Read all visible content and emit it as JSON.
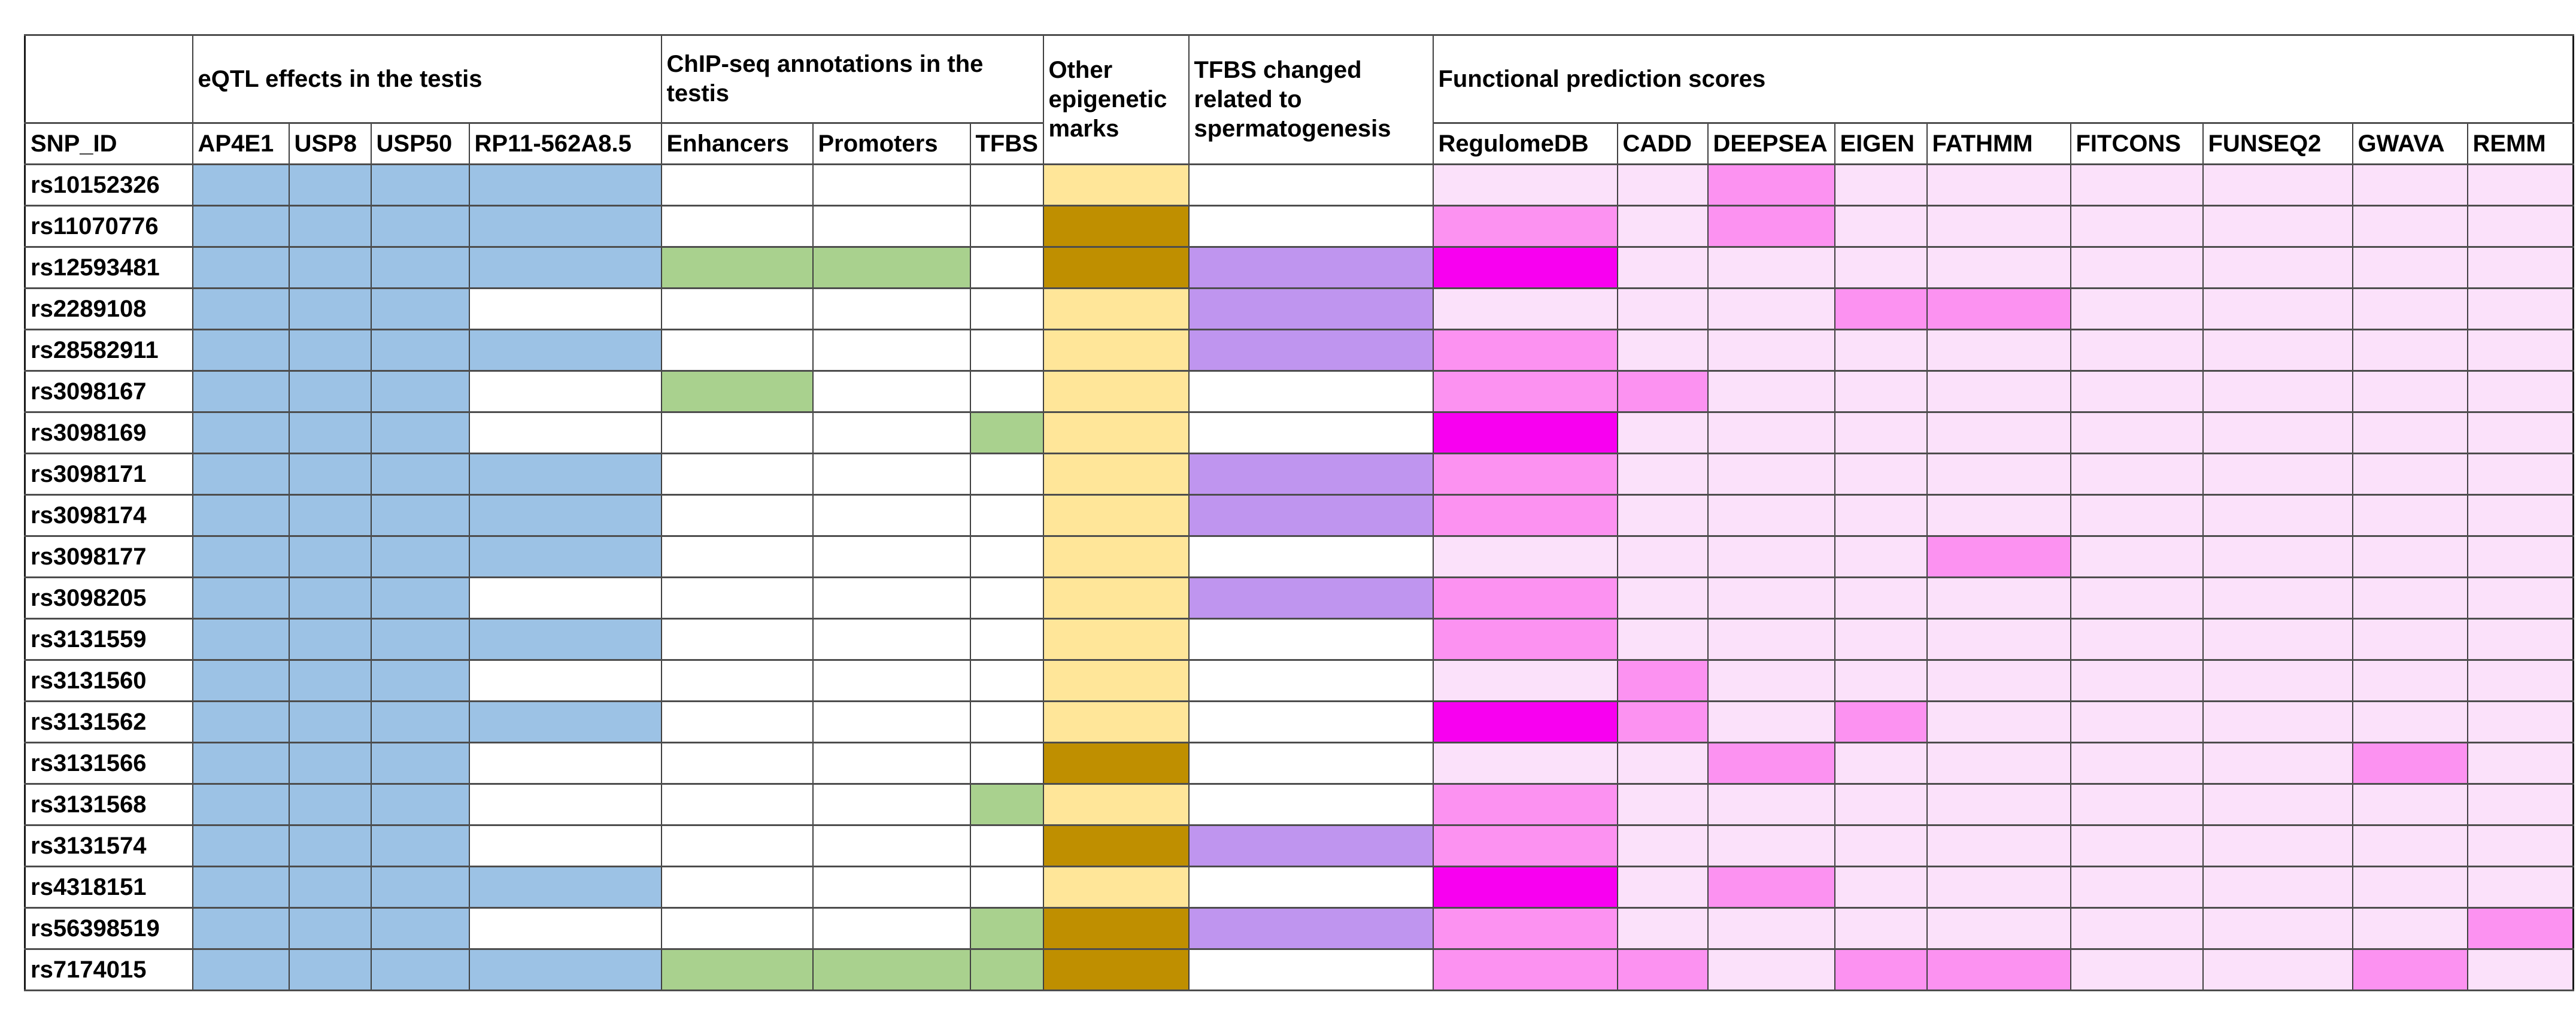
{
  "colors": {
    "eqtl_blue": "#9CC2E5",
    "chipseq_green": "#A9D18E",
    "marks_light_yellow": "#FFE699",
    "marks_dark_gold": "#BF8F00",
    "tfbs_changed_purple": "#BF95EF",
    "functional_light_pink": "#FBE1FA",
    "functional_medium_pink": "#FC92F1",
    "functional_bright_magenta": "#F800F0",
    "highlight_id_red": "#FF0000"
  },
  "chart_data": {
    "type": "heatmap",
    "title": "",
    "legend_position": "none",
    "column_groups": [
      {
        "label": "eQTL effects in the testis",
        "colspan": 4
      },
      {
        "label": "ChIP-seq annotations in the testis",
        "colspan": 3
      },
      {
        "label": "Other epigenetic marks",
        "rowspan": 2
      },
      {
        "label": "TFBS changed related to spermatogenesis",
        "rowspan": 2
      },
      {
        "label": "Functional prediction scores",
        "colspan": 9
      }
    ],
    "columns": [
      "SNP_ID",
      "AP4E1",
      "USP8",
      "USP50",
      "RP11-562A8.5",
      "Enhancers",
      "Promoters",
      "TFBS",
      "RegulomeDB",
      "CADD",
      "DEEPSEA",
      "EIGEN",
      "FATHMM",
      "FITCONS",
      "FUNSEQ2",
      "GWAVA",
      "REMM"
    ],
    "functional_column_order": [
      "RegulomeDB",
      "CADD",
      "DEEPSEA",
      "EIGEN",
      "FATHMM",
      "FITCONS",
      "FUNSEQ2",
      "GWAVA",
      "REMM"
    ],
    "cell_states": {
      "eqtl": "1=blue filled, 0=white",
      "chipseq": "1=green filled, 0=white",
      "epigenetic_marks": "light=light-yellow, dark=dark-gold",
      "tfbs_changed": "1=purple filled, 0=white",
      "functional": "L=light pink, M=medium pink, B=bright magenta"
    },
    "rows": [
      {
        "snp_id": "rs10152326",
        "id_color": "black",
        "eqtl": [
          1,
          1,
          1,
          1
        ],
        "chipseq": [
          0,
          0,
          0
        ],
        "epigenetic_marks": "light",
        "tfbs_changed": 0,
        "functional": [
          "L",
          "L",
          "M",
          "L",
          "L",
          "L",
          "L",
          "L",
          "L"
        ]
      },
      {
        "snp_id": "rs11070776",
        "id_color": "black",
        "eqtl": [
          1,
          1,
          1,
          1
        ],
        "chipseq": [
          0,
          0,
          0
        ],
        "epigenetic_marks": "dark",
        "tfbs_changed": 0,
        "functional": [
          "M",
          "L",
          "M",
          "L",
          "L",
          "L",
          "L",
          "L",
          "L"
        ]
      },
      {
        "snp_id": "rs12593481",
        "id_color": "black",
        "eqtl": [
          1,
          1,
          1,
          1
        ],
        "chipseq": [
          1,
          1,
          0
        ],
        "epigenetic_marks": "dark",
        "tfbs_changed": 1,
        "functional": [
          "B",
          "L",
          "L",
          "L",
          "L",
          "L",
          "L",
          "L",
          "L"
        ]
      },
      {
        "snp_id": "rs2289108",
        "id_color": "black",
        "eqtl": [
          1,
          1,
          1,
          0
        ],
        "chipseq": [
          0,
          0,
          0
        ],
        "epigenetic_marks": "light",
        "tfbs_changed": 1,
        "functional": [
          "L",
          "L",
          "L",
          "M",
          "M",
          "L",
          "L",
          "L",
          "L"
        ]
      },
      {
        "snp_id": "rs28582911",
        "id_color": "black",
        "eqtl": [
          1,
          1,
          1,
          1
        ],
        "chipseq": [
          0,
          0,
          0
        ],
        "epigenetic_marks": "light",
        "tfbs_changed": 1,
        "functional": [
          "M",
          "L",
          "L",
          "L",
          "L",
          "L",
          "L",
          "L",
          "L"
        ]
      },
      {
        "snp_id": "rs3098167",
        "id_color": "black",
        "eqtl": [
          1,
          1,
          1,
          0
        ],
        "chipseq": [
          1,
          0,
          0
        ],
        "epigenetic_marks": "light",
        "tfbs_changed": 0,
        "functional": [
          "M",
          "M",
          "L",
          "L",
          "L",
          "L",
          "L",
          "L",
          "L"
        ]
      },
      {
        "snp_id": "rs3098169",
        "id_color": "black",
        "eqtl": [
          1,
          1,
          1,
          0
        ],
        "chipseq": [
          0,
          0,
          1
        ],
        "epigenetic_marks": "light",
        "tfbs_changed": 0,
        "functional": [
          "B",
          "L",
          "L",
          "L",
          "L",
          "L",
          "L",
          "L",
          "L"
        ]
      },
      {
        "snp_id": "rs3098171",
        "id_color": "black",
        "eqtl": [
          1,
          1,
          1,
          1
        ],
        "chipseq": [
          0,
          0,
          0
        ],
        "epigenetic_marks": "light",
        "tfbs_changed": 1,
        "functional": [
          "M",
          "L",
          "L",
          "L",
          "L",
          "L",
          "L",
          "L",
          "L"
        ]
      },
      {
        "snp_id": "rs3098174",
        "id_color": "black",
        "eqtl": [
          1,
          1,
          1,
          1
        ],
        "chipseq": [
          0,
          0,
          0
        ],
        "epigenetic_marks": "light",
        "tfbs_changed": 1,
        "functional": [
          "M",
          "L",
          "L",
          "L",
          "L",
          "L",
          "L",
          "L",
          "L"
        ]
      },
      {
        "snp_id": "rs3098177",
        "id_color": "black",
        "eqtl": [
          1,
          1,
          1,
          1
        ],
        "chipseq": [
          0,
          0,
          0
        ],
        "epigenetic_marks": "light",
        "tfbs_changed": 0,
        "functional": [
          "L",
          "L",
          "L",
          "L",
          "M",
          "L",
          "L",
          "L",
          "L"
        ]
      },
      {
        "snp_id": "rs3098205",
        "id_color": "black",
        "eqtl": [
          1,
          1,
          1,
          0
        ],
        "chipseq": [
          0,
          0,
          0
        ],
        "epigenetic_marks": "light",
        "tfbs_changed": 1,
        "functional": [
          "M",
          "L",
          "L",
          "L",
          "L",
          "L",
          "L",
          "L",
          "L"
        ]
      },
      {
        "snp_id": "rs3131559",
        "id_color": "black",
        "eqtl": [
          1,
          1,
          1,
          1
        ],
        "chipseq": [
          0,
          0,
          0
        ],
        "epigenetic_marks": "light",
        "tfbs_changed": 0,
        "functional": [
          "M",
          "L",
          "L",
          "L",
          "L",
          "L",
          "L",
          "L",
          "L"
        ]
      },
      {
        "snp_id": "rs3131560",
        "id_color": "black",
        "eqtl": [
          1,
          1,
          1,
          0
        ],
        "chipseq": [
          0,
          0,
          0
        ],
        "epigenetic_marks": "light",
        "tfbs_changed": 0,
        "functional": [
          "L",
          "M",
          "L",
          "L",
          "L",
          "L",
          "L",
          "L",
          "L"
        ]
      },
      {
        "snp_id": "rs3131562",
        "id_color": "black",
        "eqtl": [
          1,
          1,
          1,
          1
        ],
        "chipseq": [
          0,
          0,
          0
        ],
        "epigenetic_marks": "light",
        "tfbs_changed": 0,
        "functional": [
          "B",
          "M",
          "L",
          "M",
          "L",
          "L",
          "L",
          "L",
          "L"
        ]
      },
      {
        "snp_id": "rs3131566",
        "id_color": "black",
        "eqtl": [
          1,
          1,
          1,
          0
        ],
        "chipseq": [
          0,
          0,
          0
        ],
        "epigenetic_marks": "dark",
        "tfbs_changed": 0,
        "functional": [
          "L",
          "L",
          "M",
          "L",
          "L",
          "L",
          "L",
          "M",
          "L"
        ]
      },
      {
        "snp_id": "rs3131568",
        "id_color": "black",
        "eqtl": [
          1,
          1,
          1,
          0
        ],
        "chipseq": [
          0,
          0,
          1
        ],
        "epigenetic_marks": "light",
        "tfbs_changed": 0,
        "functional": [
          "M",
          "L",
          "L",
          "L",
          "L",
          "L",
          "L",
          "L",
          "L"
        ]
      },
      {
        "snp_id": "rs3131574",
        "id_color": "black",
        "eqtl": [
          1,
          1,
          1,
          0
        ],
        "chipseq": [
          0,
          0,
          0
        ],
        "epigenetic_marks": "dark",
        "tfbs_changed": 1,
        "functional": [
          "M",
          "L",
          "L",
          "L",
          "L",
          "L",
          "L",
          "L",
          "L"
        ]
      },
      {
        "snp_id": "rs4318151",
        "id_color": "black",
        "eqtl": [
          1,
          1,
          1,
          1
        ],
        "chipseq": [
          0,
          0,
          0
        ],
        "epigenetic_marks": "light",
        "tfbs_changed": 0,
        "functional": [
          "B",
          "L",
          "M",
          "L",
          "L",
          "L",
          "L",
          "L",
          "L"
        ]
      },
      {
        "snp_id": "rs56398519",
        "id_color": "black",
        "eqtl": [
          1,
          1,
          1,
          0
        ],
        "chipseq": [
          0,
          0,
          1
        ],
        "epigenetic_marks": "dark",
        "tfbs_changed": 1,
        "functional": [
          "M",
          "L",
          "L",
          "L",
          "L",
          "L",
          "L",
          "L",
          "M"
        ]
      },
      {
        "snp_id": "rs7174015",
        "id_color": "red",
        "eqtl": [
          1,
          1,
          1,
          1
        ],
        "chipseq": [
          1,
          1,
          1
        ],
        "epigenetic_marks": "dark",
        "tfbs_changed": 0,
        "functional": [
          "M",
          "M",
          "L",
          "M",
          "M",
          "L",
          "L",
          "M",
          "L"
        ]
      }
    ]
  }
}
